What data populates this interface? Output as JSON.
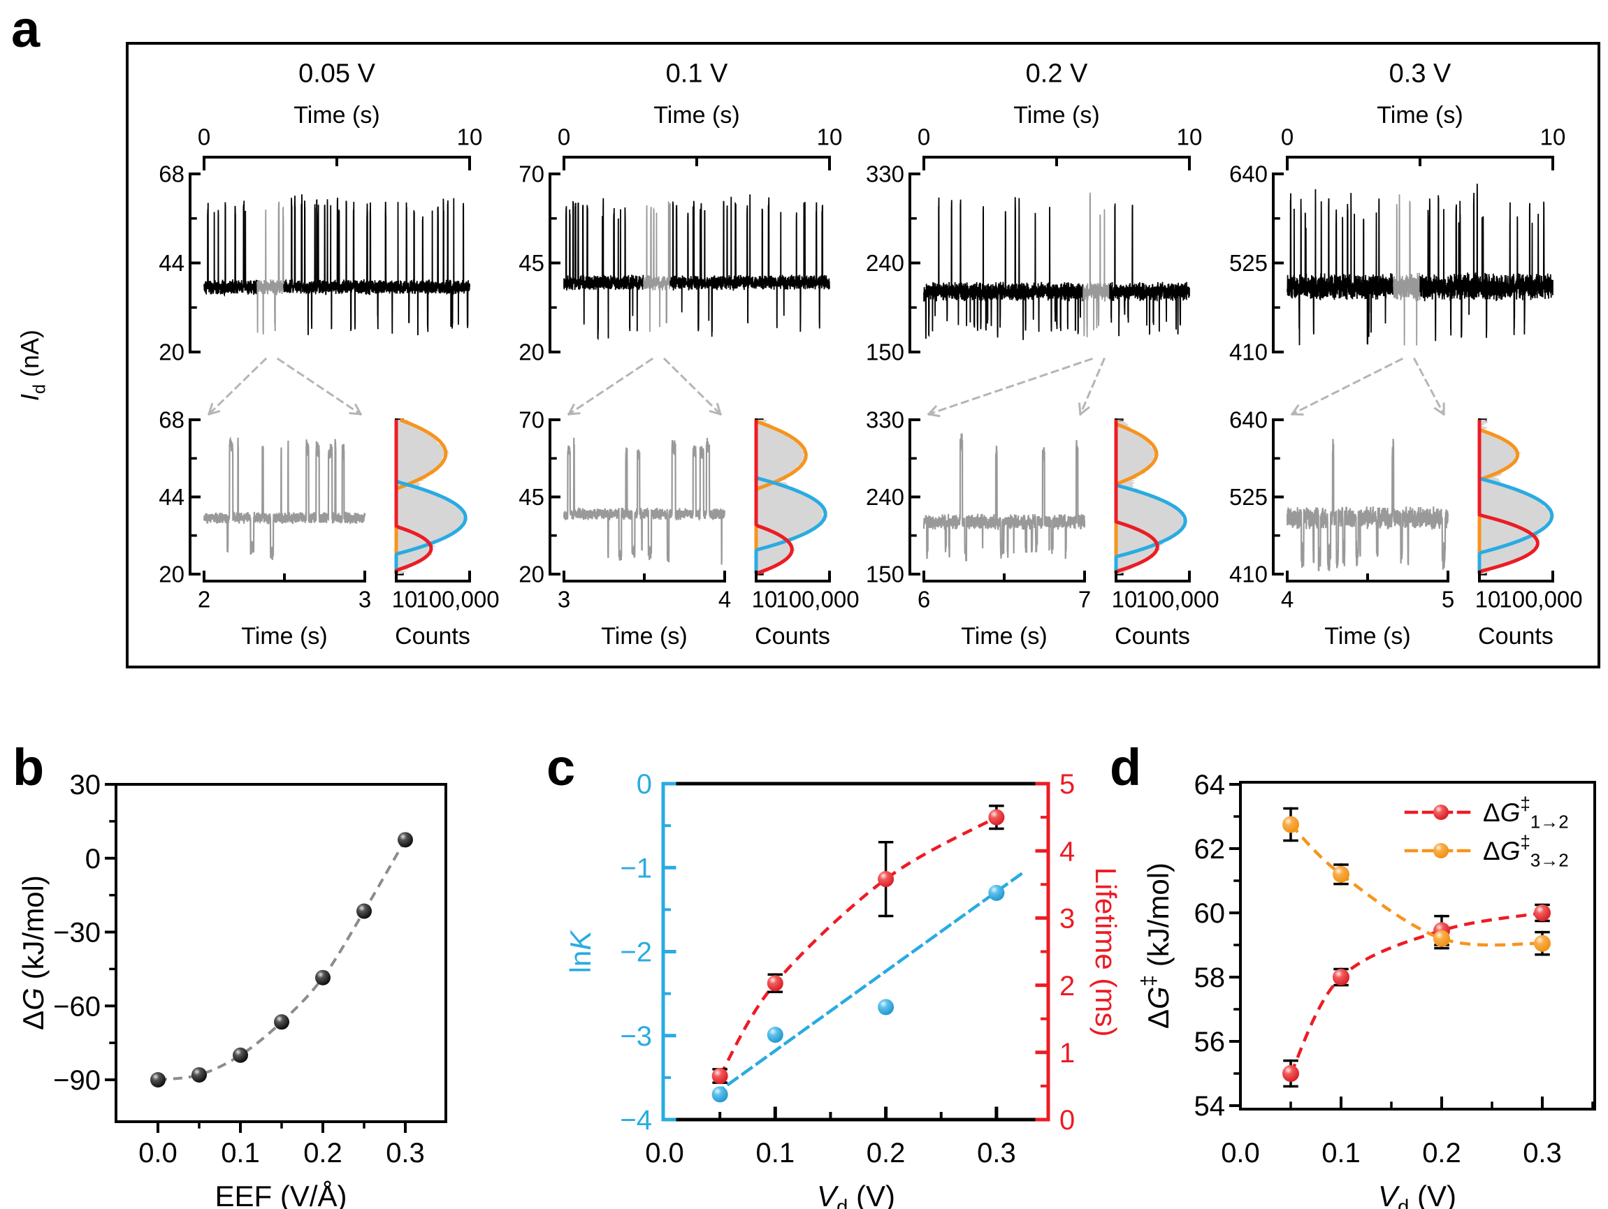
{
  "figure": {
    "panel_labels": {
      "a": "a",
      "b": "b",
      "c": "c",
      "d": "d"
    }
  },
  "colors": {
    "orange": "#F7941D",
    "blue": "#29ABE2",
    "red": "#EC1C24",
    "trace_black": "#000000",
    "trace_gray": "#999999",
    "hist_fill": "#D6D6D6",
    "arrow_gray": "#B5B5B5",
    "fit_gray": "#8C8C8C"
  },
  "chart_data": [
    {
      "panel": "a",
      "type": "line",
      "description": "Current-time telegraph traces at four drain voltages with zoomed segments and log-count histograms fitted by three Gaussian peaks",
      "y_axis_label_segs": [
        {
          "t": "I",
          "i": true
        },
        {
          "t": "d",
          "sub": true
        },
        {
          "t": " (nA)"
        }
      ],
      "time_axis_label": "Time (s)",
      "counts_label": "Counts",
      "time_tick_labels": [
        "0",
        "10"
      ],
      "hist_tick_labels": [
        "10",
        "100,000"
      ],
      "columns": [
        {
          "title": "0.05 V",
          "y_ticks": [
            68,
            44,
            20
          ],
          "y_range": [
            68,
            20
          ],
          "duration_s": 10,
          "zoom_window_s": [
            2,
            3
          ],
          "levels": {
            "up": 59,
            "base": 37.5,
            "down": 27
          },
          "main": {
            "seed": 11,
            "p_up": 0.026,
            "p_down": 0.012,
            "up_dur": 6,
            "down_dur": 5,
            "noise": 1.1
          },
          "zoom": {
            "seed": 21,
            "p_up": 0.0085,
            "p_down": 0.004,
            "up_dur": 34,
            "down_dur": 26,
            "noise": 1.0
          },
          "hist": {
            "seed": 31,
            "peaks": [
              {
                "color": "orange",
                "center": 57.5,
                "sigma": 3.1,
                "amp": 5000
              },
              {
                "color": "blue",
                "center": 37.5,
                "sigma": 2.7,
                "amp": 60000
              },
              {
                "color": "red",
                "center": 28,
                "sigma": 2.3,
                "amp": 800
              }
            ],
            "bump": {
              "center": 46,
              "sigma": 3.5,
              "amp": 130
            }
          }
        },
        {
          "title": "0.1 V",
          "y_ticks": [
            70,
            45,
            20
          ],
          "y_range": [
            70,
            20
          ],
          "duration_s": 10,
          "zoom_window_s": [
            3,
            4
          ],
          "levels": {
            "up": 60,
            "base": 39.5,
            "down": 27.5
          },
          "main": {
            "seed": 12,
            "p_up": 0.028,
            "p_down": 0.013,
            "up_dur": 6,
            "down_dur": 5,
            "noise": 1.15
          },
          "zoom": {
            "seed": 22,
            "p_up": 0.01,
            "p_down": 0.0045,
            "up_dur": 30,
            "down_dur": 24,
            "noise": 1.05
          },
          "hist": {
            "seed": 32,
            "peaks": [
              {
                "color": "orange",
                "center": 58.5,
                "sigma": 3.1,
                "amp": 5200
              },
              {
                "color": "blue",
                "center": 39.5,
                "sigma": 2.8,
                "amp": 60000
              },
              {
                "color": "red",
                "center": 28,
                "sigma": 2.6,
                "amp": 900
              }
            ],
            "bump": {
              "center": 48,
              "sigma": 3.5,
              "amp": 150
            }
          }
        },
        {
          "title": "0.2 V",
          "y_ticks": [
            330,
            240,
            150
          ],
          "y_range": [
            330,
            150
          ],
          "duration_s": 10,
          "zoom_window_s": [
            6,
            7
          ],
          "levels": {
            "up": 297,
            "base": 211,
            "down": 179
          },
          "main": {
            "seed": 13,
            "p_up": 0.012,
            "p_down": 0.024,
            "up_dur": 4,
            "down_dur": 4,
            "noise": 5.2
          },
          "zoom": {
            "seed": 23,
            "p_up": 0.0035,
            "p_down": 0.012,
            "up_dur": 26,
            "down_dur": 14,
            "noise": 4.8
          },
          "hist": {
            "seed": 33,
            "peaks": [
              {
                "color": "orange",
                "center": 290,
                "sigma": 11,
                "amp": 1600
              },
              {
                "color": "blue",
                "center": 212,
                "sigma": 10,
                "amp": 60000
              },
              {
                "color": "red",
                "center": 182,
                "sigma": 9,
                "amp": 1800
              }
            ],
            "bump": {
              "center": 252,
              "sigma": 12,
              "amp": 45
            }
          }
        },
        {
          "title": "0.3 V",
          "y_ticks": [
            640,
            525,
            410
          ],
          "y_range": [
            640,
            410
          ],
          "duration_s": 10,
          "zoom_window_s": [
            4,
            5
          ],
          "levels": {
            "up": 593,
            "base": 494,
            "down": 440
          },
          "main": {
            "seed": 14,
            "p_up": 0.022,
            "p_down": 0.013,
            "up_dur": 4,
            "down_dur": 5,
            "noise": 9.5
          },
          "zoom": {
            "seed": 24,
            "p_up": 0.0028,
            "p_down": 0.013,
            "up_dur": 14,
            "down_dur": 28,
            "noise": 9.0
          },
          "hist": {
            "seed": 34,
            "peaks": [
              {
                "color": "orange",
                "center": 588,
                "sigma": 12,
                "amp": 1200
              },
              {
                "color": "blue",
                "center": 497,
                "sigma": 13,
                "amp": 90000
              },
              {
                "color": "red",
                "center": 456,
                "sigma": 11,
                "amp": 15000
              }
            ],
            "bump": {
              "center": 545,
              "sigma": 15,
              "amp": 40
            }
          }
        }
      ]
    },
    {
      "panel": "b",
      "type": "scatter",
      "x_label_segs": [
        {
          "t": "EEF (V/Å)"
        }
      ],
      "y_label_segs": [
        {
          "t": "Δ"
        },
        {
          "t": "G",
          "i": true
        },
        {
          "t": " (kJ/mol)"
        }
      ],
      "x_ticks": [
        0,
        0.1,
        0.2,
        0.3
      ],
      "x_tick_labels": [
        "0.0",
        "0.1",
        "0.2",
        "0.3"
      ],
      "x_minor_ticks": [
        0.05,
        0.15,
        0.25
      ],
      "y_ticks": [
        30,
        0,
        -30,
        -60,
        -90
      ],
      "y_tick_labels": [
        "30",
        "0",
        "−30",
        "−60",
        "−90"
      ],
      "y_minor_ticks": [
        15,
        -15,
        -45,
        -75
      ],
      "x": [
        0,
        0.05,
        0.1,
        0.15,
        0.2,
        0.25,
        0.3
      ],
      "y": [
        -90,
        -88,
        -80,
        -66.5,
        -48.5,
        -21.5,
        7.5
      ],
      "xlim": [
        -0.051,
        0.349
      ],
      "ylim": [
        -107,
        30
      ]
    },
    {
      "panel": "c",
      "type": "scatter",
      "x_label_segs": [
        {
          "t": "V",
          "i": true
        },
        {
          "t": "d",
          "sub": true
        },
        {
          "t": " (V)"
        }
      ],
      "left_label_segs": [
        {
          "t": "ln"
        },
        {
          "t": "K",
          "i": true
        }
      ],
      "right_label_segs": [
        {
          "t": "Lifetime (ms)"
        }
      ],
      "x_ticks": [
        0.1,
        0.2,
        0.3
      ],
      "x_minor_ticks": [
        0.05,
        0.15,
        0.25
      ],
      "x_tick_labels": [
        "0.0",
        "0.1",
        "0.2",
        "0.3"
      ],
      "x_tick_label_values": [
        0,
        0.1,
        0.2,
        0.3
      ],
      "left_ticks": [
        0,
        -1,
        -2,
        -3,
        -4
      ],
      "left_tick_labels": [
        "0",
        "−1",
        "−2",
        "−3",
        "−4"
      ],
      "left_minor_ticks": [
        -0.5,
        -1.5,
        -2.5,
        -3.5
      ],
      "right_ticks": [
        0,
        1,
        2,
        3,
        4,
        5
      ],
      "right_tick_labels": [
        "0",
        "1",
        "2",
        "3",
        "4",
        "5"
      ],
      "right_minor_ticks": [
        0.5,
        1.5,
        2.5,
        3.5,
        4.5
      ],
      "lnK": {
        "x": [
          0.05,
          0.1,
          0.2,
          0.3
        ],
        "y": [
          -3.7,
          -2.99,
          -2.66,
          -1.3
        ]
      },
      "lnK_fit_line": {
        "x1": 0.045,
        "y1": -3.7,
        "x2": 0.325,
        "y2": -1.05
      },
      "lifetime": {
        "x": [
          0.05,
          0.1,
          0.2,
          0.3
        ],
        "y": [
          0.65,
          2.03,
          3.58,
          4.5
        ],
        "err": [
          0.1,
          0.13,
          0.55,
          0.17
        ]
      },
      "xlim": [
        0,
        0.347
      ],
      "left_ylim": [
        -4,
        0
      ],
      "right_ylim": [
        0,
        5
      ]
    },
    {
      "panel": "d",
      "type": "scatter",
      "x_label_segs": [
        {
          "t": "V",
          "i": true
        },
        {
          "t": "d",
          "sub": true
        },
        {
          "t": " (V)"
        }
      ],
      "y_label_segs": [
        {
          "t": "Δ"
        },
        {
          "t": "G",
          "i": true
        },
        {
          "t": "‡",
          "sup": true
        },
        {
          "t": " (kJ/mol)"
        }
      ],
      "x_ticks": [
        0.1,
        0.2,
        0.3
      ],
      "x_minor_ticks": [
        0.05,
        0.15,
        0.25,
        0.35
      ],
      "x_tick_labels": [
        "0.0",
        "0.1",
        "0.2",
        "0.3"
      ],
      "x_tick_label_values": [
        0,
        0.1,
        0.2,
        0.3
      ],
      "y_ticks": [
        64,
        62,
        60,
        58,
        56,
        54
      ],
      "y_tick_labels": [
        "64",
        "62",
        "60",
        "58",
        "56",
        "54"
      ],
      "y_minor_ticks": [
        63,
        61,
        59,
        57,
        55
      ],
      "series": [
        {
          "color": "red",
          "legend_segs": [
            {
              "t": "Δ"
            },
            {
              "t": "G",
              "i": true
            },
            {
              "t": "‡",
              "sup": true
            },
            {
              "t": "1→2",
              "sub": true
            }
          ],
          "x": [
            0.05,
            0.1,
            0.2,
            0.3
          ],
          "y": [
            55.0,
            58.0,
            59.45,
            60.0
          ],
          "err": [
            0.4,
            0.25,
            0.45,
            0.25
          ]
        },
        {
          "color": "orange",
          "legend_segs": [
            {
              "t": "Δ"
            },
            {
              "t": "G",
              "i": true
            },
            {
              "t": "‡",
              "sup": true
            },
            {
              "t": "3→2",
              "sub": true
            }
          ],
          "x": [
            0.05,
            0.1,
            0.2,
            0.3
          ],
          "y": [
            62.75,
            61.2,
            59.2,
            59.05
          ],
          "err": [
            0.5,
            0.3,
            0.3,
            0.35
          ]
        }
      ],
      "xlim": [
        0,
        0.352
      ],
      "ylim": [
        54,
        64
      ]
    }
  ]
}
